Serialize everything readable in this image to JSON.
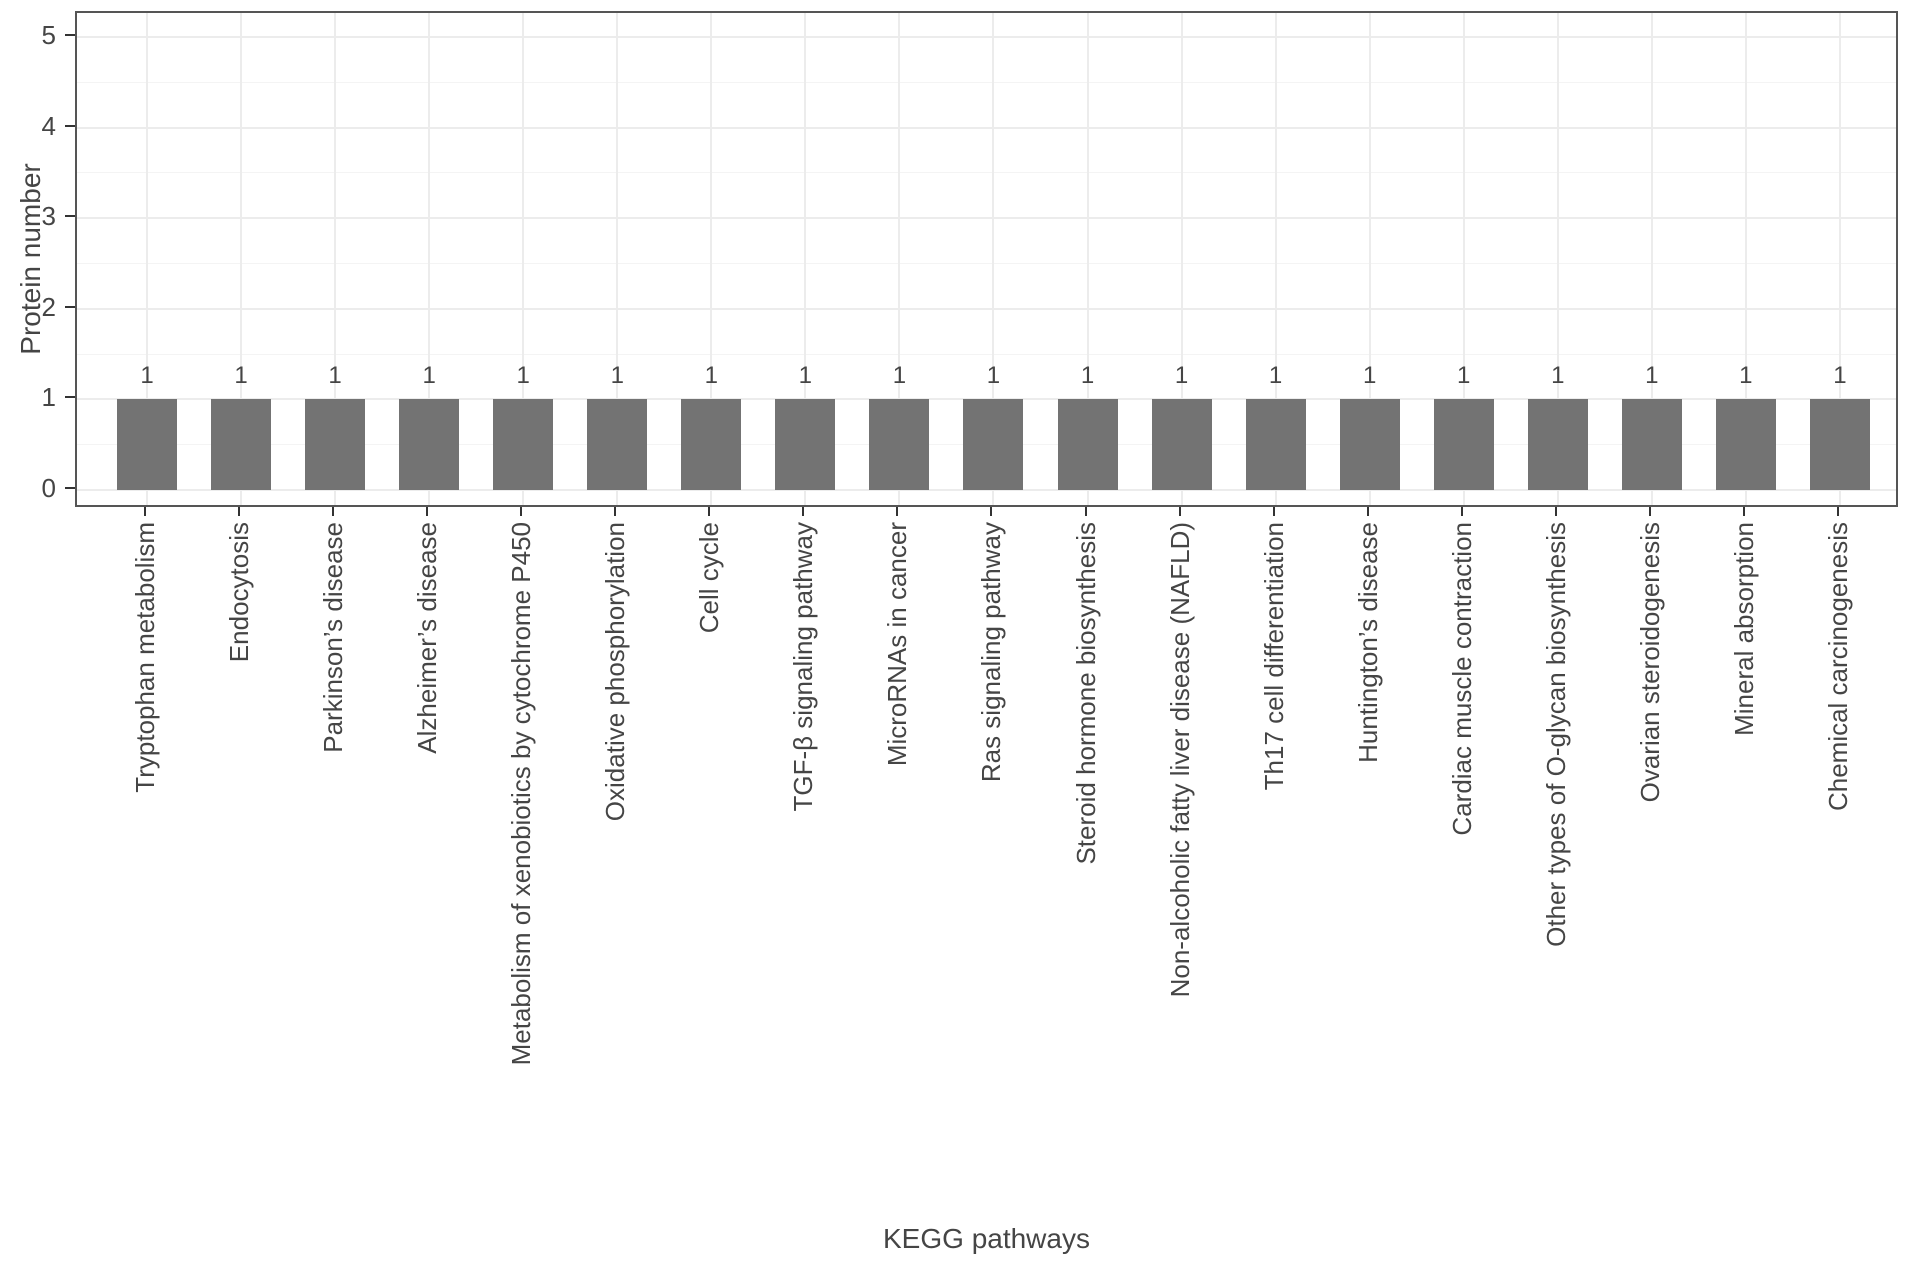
{
  "chart_data": {
    "type": "bar",
    "title": "",
    "xlabel": "KEGG pathways",
    "ylabel": "Protein number",
    "categories": [
      "Tryptophan metabolism",
      "Endocytosis",
      "Parkinson’s disease",
      "Alzheimer’s disease",
      "Metabolism of xenobiotics by cytochrome P450",
      "Oxidative phosphorylation",
      "Cell cycle",
      "TGF-β signaling pathway",
      "MicroRNAs in cancer",
      "Ras signaling pathway",
      "Steroid hormone biosynthesis",
      "Non-alcoholic fatty liver disease (NAFLD)",
      "Th17 cell differentiation",
      "Huntington’s disease",
      "Cardiac muscle contraction",
      "Other types of O-glycan biosynthesis",
      "Ovarian steroidogenesis",
      "Mineral absorption",
      "Chemical carcinogenesis"
    ],
    "values": [
      1,
      1,
      1,
      1,
      1,
      1,
      1,
      1,
      1,
      1,
      1,
      1,
      1,
      1,
      1,
      1,
      1,
      1,
      1
    ],
    "bar_value_labels": [
      "1",
      "1",
      "1",
      "1",
      "1",
      "1",
      "1",
      "1",
      "1",
      "1",
      "1",
      "1",
      "1",
      "1",
      "1",
      "1",
      "1",
      "1",
      "1"
    ],
    "yticks": [
      0,
      1,
      2,
      3,
      4,
      5
    ],
    "ylim": [
      0,
      5
    ],
    "grid": {
      "major": true,
      "minor": true
    },
    "legend": "none",
    "style": {
      "bar_fill": "#737373",
      "panel_border": "#555555",
      "grid_major": "#ececec",
      "grid_minor": "#f4f4f4",
      "tick_color": "#333333",
      "text_color": "#454545",
      "background": "#ffffff"
    }
  }
}
